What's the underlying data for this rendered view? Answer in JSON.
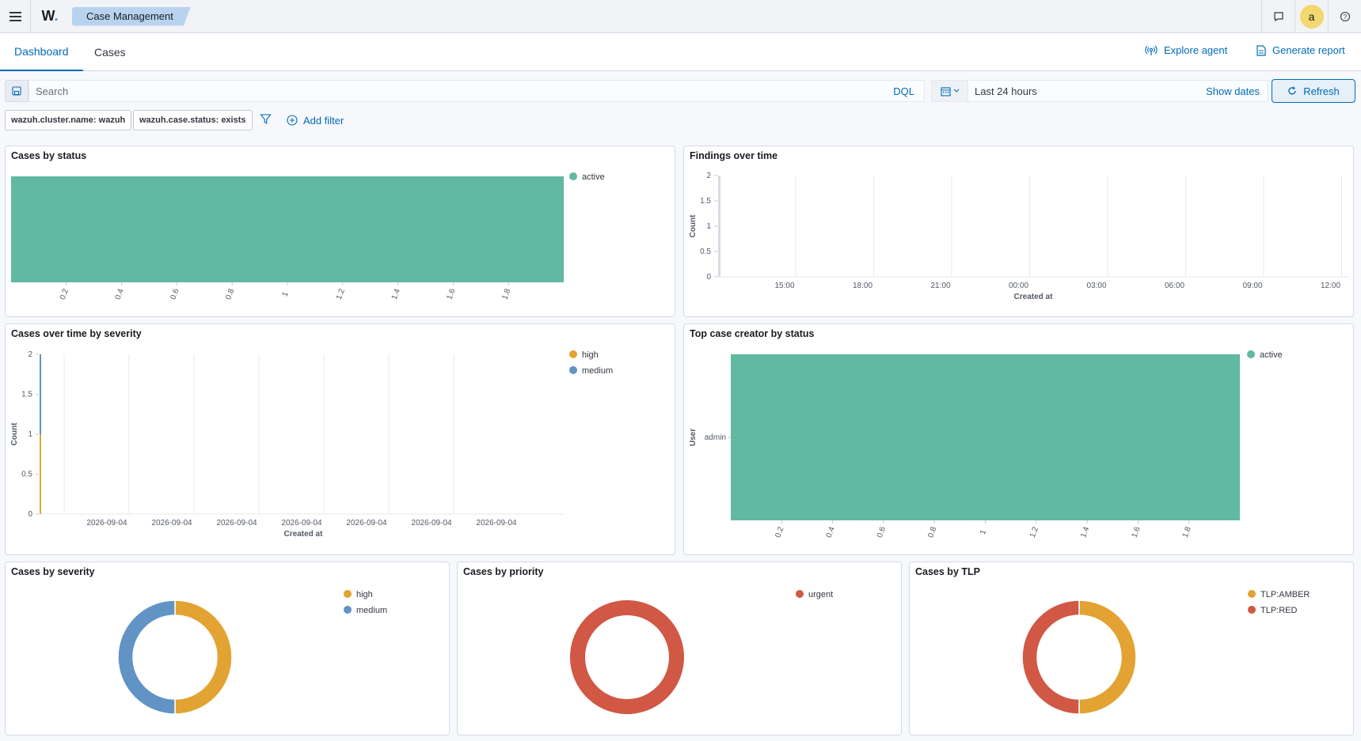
{
  "header": {
    "logo": "W",
    "breadcrumb": "Case Management",
    "avatar_letter": "a",
    "icons": [
      "menu-icon",
      "chat-icon",
      "help-icon"
    ]
  },
  "tabs": [
    {
      "label": "Dashboard",
      "active": true
    },
    {
      "label": "Cases",
      "active": false
    }
  ],
  "actions": {
    "explore_agent": "Explore agent",
    "generate_report": "Generate report"
  },
  "search": {
    "placeholder": "Search",
    "language": "DQL",
    "date_range": "Last 24 hours",
    "show_dates": "Show dates",
    "refresh": "Refresh"
  },
  "filters": {
    "pills": [
      "wazuh.cluster.name: wazuh",
      "wazuh.case.status: exists"
    ],
    "add_filter": "Add filter"
  },
  "colors": {
    "teal": "#60b9a0",
    "orange": "#e3a332",
    "blue": "#6193c5",
    "red": "#d05845",
    "accent": "#006bb8"
  },
  "panels": {
    "cases_by_status": "Cases by status",
    "findings_over_time": "Findings over time",
    "cases_over_time_by_severity": "Cases over time by severity",
    "top_case_creator": "Top case creator by status",
    "cases_by_severity": "Cases by severity",
    "cases_by_priority": "Cases by priority",
    "cases_by_tlp": "Cases by TLP"
  },
  "chart_data": [
    {
      "id": "cases_by_status",
      "type": "bar",
      "orientation": "horizontal",
      "title": "Cases by status",
      "xticks": [
        "0.2",
        "0.4",
        "0.6",
        "0.8",
        "1",
        "1.2",
        "1.4",
        "1.6",
        "1.8"
      ],
      "xlim": [
        0,
        2
      ],
      "series": [
        {
          "name": "active",
          "values": [
            2
          ]
        }
      ],
      "legend": "top-right"
    },
    {
      "id": "findings_over_time",
      "type": "bar",
      "title": "Findings over time",
      "xlabel": "Created at",
      "ylabel": "Count",
      "yticks": [
        "0",
        "0.5",
        "1",
        "1.5",
        "2"
      ],
      "ylim": [
        0,
        2
      ],
      "xticks": [
        "15:00",
        "18:00",
        "21:00",
        "00:00",
        "03:00",
        "06:00",
        "09:00",
        "12:00"
      ],
      "values": [
        2
      ]
    },
    {
      "id": "cases_over_time_by_severity",
      "type": "bar",
      "title": "Cases over time by severity",
      "xlabel": "Created at",
      "ylabel": "Count",
      "yticks": [
        "0",
        "0.5",
        "1",
        "1.5",
        "2"
      ],
      "ylim": [
        0,
        2
      ],
      "xticks": [
        "2026-09-04",
        "2026-09-04",
        "2026-09-04",
        "2026-09-04",
        "2026-09-04",
        "2026-09-04",
        "2026-09-04"
      ],
      "series": [
        {
          "name": "high",
          "values": [
            1
          ]
        },
        {
          "name": "medium",
          "values": [
            1
          ]
        }
      ],
      "legend": "top-right"
    },
    {
      "id": "top_case_creator",
      "type": "bar",
      "orientation": "horizontal",
      "title": "Top case creator by status",
      "ylabel": "User",
      "categories": [
        "admin"
      ],
      "xticks": [
        "0.2",
        "0.4",
        "0.6",
        "0.8",
        "1",
        "1.2",
        "1.4",
        "1.6",
        "1.8"
      ],
      "xlim": [
        0,
        2
      ],
      "series": [
        {
          "name": "active",
          "values": [
            2
          ]
        }
      ],
      "legend": "top-right"
    },
    {
      "id": "cases_by_severity",
      "type": "pie",
      "title": "Cases by severity",
      "slices": [
        {
          "name": "high",
          "value": 1
        },
        {
          "name": "medium",
          "value": 1
        }
      ],
      "legend": "top-right"
    },
    {
      "id": "cases_by_priority",
      "type": "pie",
      "title": "Cases by priority",
      "slices": [
        {
          "name": "urgent",
          "value": 2
        }
      ],
      "legend": "top-right"
    },
    {
      "id": "cases_by_tlp",
      "type": "pie",
      "title": "Cases by TLP",
      "slices": [
        {
          "name": "TLP:AMBER",
          "value": 1
        },
        {
          "name": "TLP:RED",
          "value": 1
        }
      ],
      "legend": "top-right"
    }
  ]
}
